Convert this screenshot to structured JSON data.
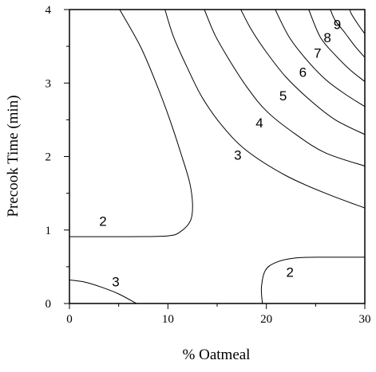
{
  "chart_data": {
    "type": "contour",
    "xlabel": "% Oatmeal",
    "ylabel": "Precook Time (min)",
    "xlim": [
      0,
      30
    ],
    "ylim": [
      0,
      4
    ],
    "xticks": [
      0,
      10,
      20,
      30
    ],
    "yticks": [
      0,
      1,
      2,
      3,
      4
    ],
    "x_tick_labels": [
      "0",
      "10",
      "20",
      "30"
    ],
    "y_tick_labels": [
      "0",
      "1",
      "2",
      "3",
      "4"
    ],
    "contours": [
      {
        "level": "2",
        "points": [
          [
            0,
            0.91
          ],
          [
            6,
            0.91
          ],
          [
            10,
            0.92
          ],
          [
            11.3,
            0.98
          ],
          [
            12.3,
            1.13
          ],
          [
            12.5,
            1.35
          ],
          [
            12.2,
            1.65
          ],
          [
            11.3,
            2.05
          ],
          [
            10.2,
            2.5
          ],
          [
            8.8,
            3.0
          ],
          [
            7.2,
            3.5
          ],
          [
            5.1,
            4.0
          ]
        ]
      },
      {
        "level": "2",
        "points": [
          [
            19.6,
            0
          ],
          [
            19.5,
            0.22
          ],
          [
            19.9,
            0.45
          ],
          [
            21.0,
            0.56
          ],
          [
            23.0,
            0.62
          ],
          [
            26.0,
            0.63
          ],
          [
            30.0,
            0.63
          ]
        ]
      },
      {
        "level": "3",
        "points": [
          [
            0,
            0.32
          ],
          [
            1.6,
            0.29
          ],
          [
            3.3,
            0.22
          ],
          [
            5.0,
            0.13
          ],
          [
            6.8,
            0.0
          ]
        ]
      },
      {
        "level": "3",
        "points": [
          [
            30,
            1.3
          ],
          [
            26.0,
            1.5
          ],
          [
            22.0,
            1.74
          ],
          [
            18.0,
            2.08
          ],
          [
            15.5,
            2.42
          ],
          [
            13.5,
            2.8
          ],
          [
            12.0,
            3.2
          ],
          [
            10.6,
            3.62
          ],
          [
            9.7,
            4.0
          ]
        ]
      },
      {
        "level": "4",
        "points": [
          [
            30,
            1.87
          ],
          [
            26.0,
            2.05
          ],
          [
            23.0,
            2.3
          ],
          [
            20.0,
            2.62
          ],
          [
            18.0,
            2.95
          ],
          [
            16.3,
            3.3
          ],
          [
            14.8,
            3.65
          ],
          [
            13.7,
            4.0
          ]
        ]
      },
      {
        "level": "5",
        "points": [
          [
            30,
            2.3
          ],
          [
            27.0,
            2.5
          ],
          [
            24.5,
            2.76
          ],
          [
            22.0,
            3.08
          ],
          [
            20.0,
            3.42
          ],
          [
            18.5,
            3.72
          ],
          [
            17.4,
            4.0
          ]
        ]
      },
      {
        "level": "6",
        "points": [
          [
            30,
            2.68
          ],
          [
            28.0,
            2.85
          ],
          [
            26.0,
            3.05
          ],
          [
            24.0,
            3.33
          ],
          [
            22.3,
            3.63
          ],
          [
            20.9,
            4.0
          ]
        ]
      },
      {
        "level": "7",
        "points": [
          [
            30,
            3.02
          ],
          [
            28.5,
            3.18
          ],
          [
            27.0,
            3.38
          ],
          [
            25.5,
            3.62
          ],
          [
            24.3,
            4.0
          ]
        ]
      },
      {
        "level": "8",
        "points": [
          [
            30,
            3.35
          ],
          [
            29.0,
            3.5
          ],
          [
            28.0,
            3.68
          ],
          [
            27.0,
            3.85
          ],
          [
            26.5,
            4.0
          ]
        ]
      },
      {
        "level": "9",
        "points": [
          [
            30,
            3.67
          ],
          [
            29.3,
            3.8
          ],
          [
            28.6,
            3.95
          ],
          [
            28.5,
            4.0
          ]
        ]
      }
    ],
    "contour_labels": [
      {
        "text": "2",
        "x": 3.4,
        "y": 1.12
      },
      {
        "text": "3",
        "x": 4.7,
        "y": 0.3
      },
      {
        "text": "2",
        "x": 22.4,
        "y": 0.43
      },
      {
        "text": "3",
        "x": 17.1,
        "y": 2.02
      },
      {
        "text": "4",
        "x": 19.3,
        "y": 2.46
      },
      {
        "text": "5",
        "x": 21.7,
        "y": 2.83
      },
      {
        "text": "6",
        "x": 23.7,
        "y": 3.15
      },
      {
        "text": "7",
        "x": 25.2,
        "y": 3.41
      },
      {
        "text": "8",
        "x": 26.2,
        "y": 3.62
      },
      {
        "text": "9",
        "x": 27.2,
        "y": 3.8
      }
    ]
  }
}
